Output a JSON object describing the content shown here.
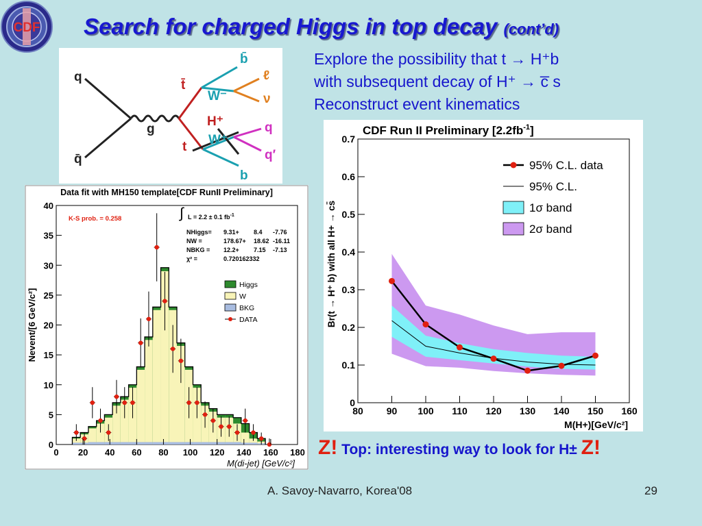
{
  "slide": {
    "title": "Search for charged Higgs in top decay",
    "title_suffix": "(cont’d)",
    "logo_text": "CDF",
    "bullets": [
      "Explore the possibility that t → H⁺b",
      "with subsequent decay of H⁺ → c̅ s",
      "Reconstruct event kinematics"
    ],
    "z1": "Z!",
    "z_text": "Top: interesting way to look for H±",
    "z2": "Z!",
    "footer": "A. Savoy-Navarro, Korea'08",
    "page_number": "29"
  },
  "feynman": {
    "labels": [
      "q",
      "q̄",
      "g",
      "t̄",
      "W⁻",
      "b̄",
      "ℓ",
      "ν",
      "H⁺",
      "t",
      "W⁺",
      "q",
      "q′",
      "b"
    ]
  },
  "colors": {
    "accent": "#1818d0",
    "background": "#c0e3e6",
    "z_red": "#e02010"
  },
  "chart_data": [
    {
      "type": "bar",
      "title": "Data fit with MH150 template[CDF RunII Preliminary]",
      "xlabel": "M(di-jet) [GeV/c²]",
      "ylabel": "Nevent/[6 GeV/c²]",
      "xlim": [
        0,
        180
      ],
      "ylim": [
        0,
        40
      ],
      "xticks": [
        0,
        20,
        40,
        60,
        80,
        100,
        120,
        140,
        160,
        180
      ],
      "yticks": [
        0,
        5,
        10,
        15,
        20,
        25,
        30,
        35,
        40
      ],
      "bin_width": 6,
      "bin_edges_start": 12,
      "series": [
        {
          "name": "Higgs",
          "values": [
            1.2,
            2.0,
            3.0,
            4.0,
            5.0,
            7.0,
            8.0,
            10.0,
            13.0,
            18.0,
            23.0,
            29.6,
            23.0,
            17.0,
            13.0,
            10.0,
            7.0,
            6.0,
            5.0,
            5.0,
            4.5,
            3.5,
            2.0,
            1.0
          ]
        },
        {
          "name": "W",
          "values": [
            1.0,
            1.7,
            2.7,
            3.5,
            4.5,
            6.5,
            7.5,
            9.5,
            12.5,
            17.5,
            22.5,
            29.0,
            22.5,
            16.5,
            12.5,
            9.5,
            6.5,
            5.5,
            4.5,
            4.5,
            3.5,
            2.0,
            1.0,
            0.5
          ]
        },
        {
          "name": "BKG",
          "values": [
            0.3,
            0.3,
            0.4,
            0.4,
            0.4,
            0.4,
            0.4,
            0.4,
            0.4,
            0.4,
            0.4,
            0.4,
            0.4,
            0.4,
            0.4,
            0.4,
            0.4,
            0.4,
            0.4,
            0.4,
            0.4,
            0.3,
            0.3,
            0.2
          ]
        },
        {
          "name": "DATA",
          "x": [
            15,
            21,
            27,
            33,
            39,
            45,
            51,
            57,
            63,
            69,
            75,
            81,
            87,
            93,
            99,
            105,
            111,
            117,
            123,
            129,
            135,
            141,
            147,
            153,
            159
          ],
          "values": [
            2,
            1,
            7,
            4,
            2,
            8,
            7,
            7,
            17,
            21,
            33,
            24,
            16,
            14,
            7,
            7,
            5,
            4,
            3,
            3,
            2,
            4,
            2,
            1,
            0
          ],
          "errors": [
            1.4,
            1.0,
            2.6,
            2.0,
            1.4,
            2.8,
            2.6,
            2.6,
            4.1,
            4.6,
            5.7,
            4.9,
            4.0,
            3.7,
            2.6,
            2.6,
            2.2,
            2.0,
            1.7,
            1.7,
            1.4,
            2.0,
            1.4,
            1.0,
            1.0
          ]
        }
      ],
      "annotations": {
        "ks": "K-S prob. =     0.258",
        "lumi": "L = 2.2 ± 0.1 fb",
        "lumi_sup": "-1",
        "stats": [
          {
            "k": "NHiggs=",
            "v": "9.31+",
            "a": "8.4",
            "b": "-7.76"
          },
          {
            "k": "NW     =",
            "v": "178.67+",
            "a": "18.62",
            "b": "-16.11"
          },
          {
            "k": "NBKG =",
            "v": "12.2+",
            "a": "7.15",
            "b": "-7.13"
          },
          {
            "k": "χ²      =",
            "v": "0.720162332",
            "a": "",
            "b": ""
          }
        ]
      },
      "legend": {
        "position": "top-right",
        "entries": [
          "Higgs",
          "W",
          "BKG",
          "DATA"
        ]
      },
      "colors": {
        "Higgs": "#2e8a2e",
        "W": "#f8f4b8",
        "BKG": "#a8bce0",
        "DATA": "#e02010"
      }
    },
    {
      "type": "line",
      "title": "CDF Run II Preliminary [2.2fb",
      "title_sup": "-1",
      "title_end": "]",
      "xlabel": "M(H+)[GeV/c²]",
      "ylabel": "Br(t → H⁺ b) with all H+ → cs̄",
      "xlim": [
        80,
        160
      ],
      "ylim": [
        0,
        0.7
      ],
      "xticks": [
        80,
        90,
        100,
        110,
        120,
        130,
        140,
        150,
        160
      ],
      "yticks": [
        0,
        0.1,
        0.2,
        0.3,
        0.4,
        0.5,
        0.6,
        0.7
      ],
      "ytick_labels": [
        "0",
        "0.1",
        "0.2",
        "0.3",
        "0.4",
        "0.5",
        "0.6",
        "0.7"
      ],
      "x": [
        90,
        100,
        110,
        120,
        130,
        140,
        150
      ],
      "series": [
        {
          "name": "95% C.L. data",
          "values": [
            0.323,
            0.208,
            0.147,
            0.117,
            0.085,
            0.098,
            0.125
          ]
        },
        {
          "name": "95% C.L.",
          "values": [
            0.218,
            0.15,
            0.132,
            0.118,
            0.108,
            0.102,
            0.1
          ]
        },
        {
          "name": "1σ band",
          "lower": [
            0.175,
            0.122,
            0.113,
            0.104,
            0.096,
            0.09,
            0.088
          ],
          "upper": [
            0.258,
            0.178,
            0.158,
            0.142,
            0.132,
            0.125,
            0.122
          ]
        },
        {
          "name": "2σ band",
          "lower": [
            0.13,
            0.097,
            0.093,
            0.084,
            0.078,
            0.074,
            0.072
          ],
          "upper": [
            0.395,
            0.258,
            0.234,
            0.205,
            0.182,
            0.187,
            0.187
          ]
        }
      ],
      "legend": {
        "position": "top-right",
        "entries": [
          "95% C.L. data",
          "95% C.L.",
          "1σ band",
          "2σ band"
        ]
      },
      "colors": {
        "data": "#e02010",
        "band1": "#7ff0f8",
        "band2": "#cc99f0"
      }
    }
  ]
}
